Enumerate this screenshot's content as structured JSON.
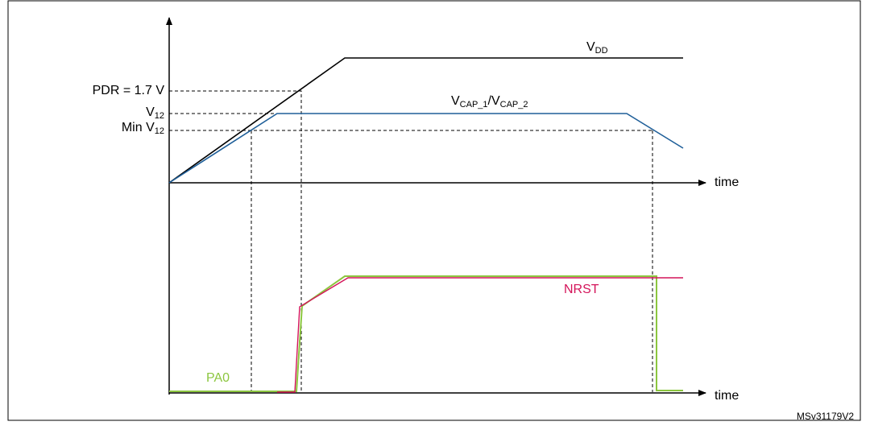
{
  "labels": {
    "pdr": "PDR = 1.7 V",
    "v12": {
      "main": "V",
      "sub": "12"
    },
    "min_v12": {
      "main": "Min V",
      "sub": "12"
    },
    "vdd": {
      "main": "V",
      "sub": "DD"
    },
    "vcap": {
      "main1": "V",
      "sub1": "CAP_1",
      "slash": "/V",
      "sub2": "CAP_2"
    },
    "time_top": "time",
    "time_bottom": "time",
    "nrst": "NRST",
    "pa0": "PA0",
    "ref": "MSv31179V2"
  }
}
